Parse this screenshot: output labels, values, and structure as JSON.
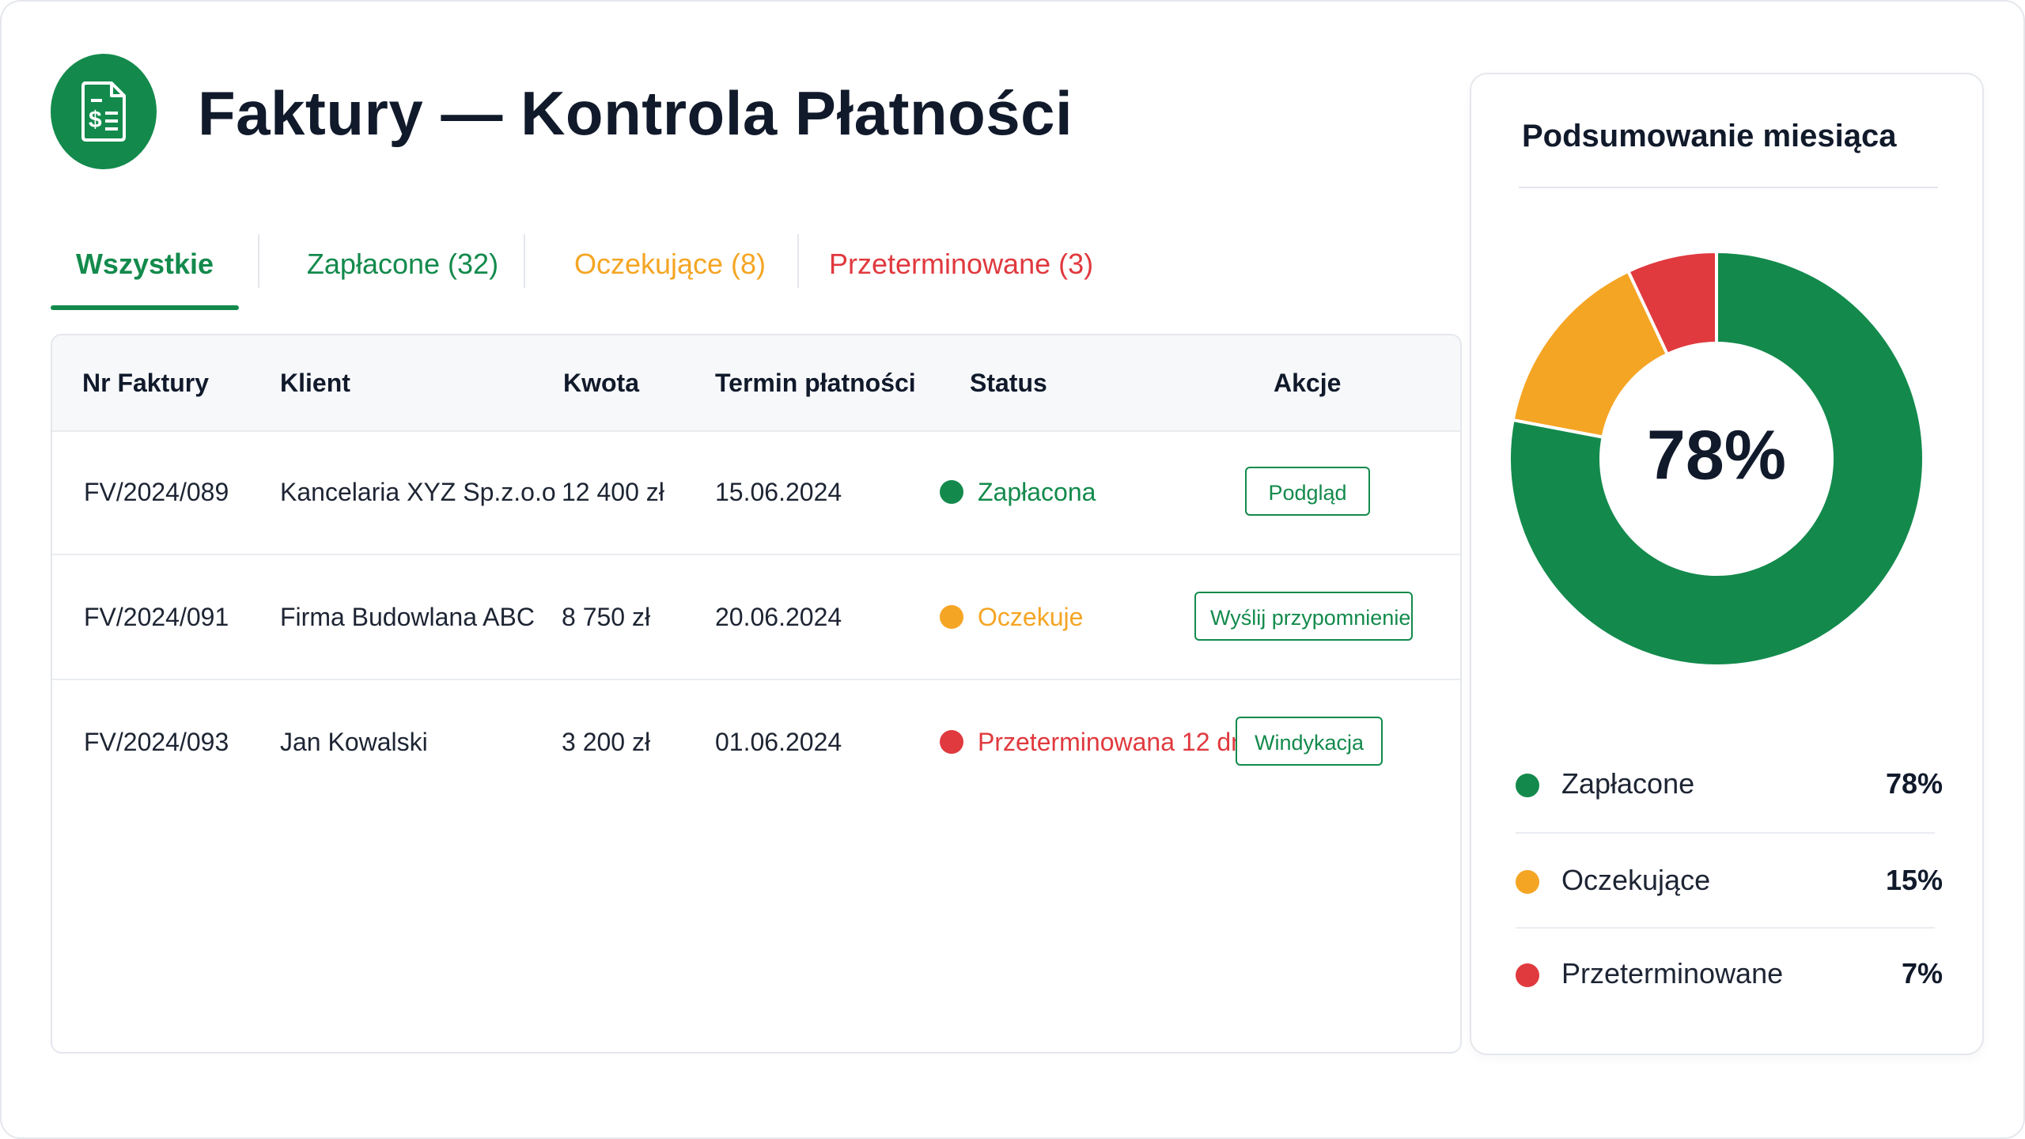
{
  "header": {
    "title": "Faktury — Kontrola Płatności",
    "logo_icon": "invoice-dollar-icon",
    "brand_color": "#138a4c"
  },
  "tabs": [
    {
      "label": "Wszystkie",
      "color": "#138a4c",
      "active": true
    },
    {
      "label": "Zapłacone (32)",
      "color": "#138a4c",
      "active": false
    },
    {
      "label": "Oczekujące (8)",
      "color": "#f5a524",
      "active": false
    },
    {
      "label": "Przeterminowane (3)",
      "color": "#e0393e",
      "active": false
    }
  ],
  "table": {
    "columns": [
      "Nr Faktury",
      "Klient",
      "Kwota",
      "Termin płatności",
      "Status",
      "Akcje"
    ],
    "rows": [
      {
        "number": "FV/2024/089",
        "client": "Kancelaria XYZ Sp.z.o.o",
        "amount": "12 400 zł",
        "due": "15.06.2024",
        "status": "Zapłacona",
        "status_color": "#138a4c",
        "action": "Podgląd"
      },
      {
        "number": "FV/2024/091",
        "client": "Firma Budowlana ABC",
        "amount": "8 750 zł",
        "due": "20.06.2024",
        "status": "Oczekuje",
        "status_color": "#f5a524",
        "action": "Wyślij przypomnienie"
      },
      {
        "number": "FV/2024/093",
        "client": "Jan Kowalski",
        "amount": "3 200 zł",
        "due": "01.06.2024",
        "status": "Przeterminowana 12 dni",
        "status_color": "#e0393e",
        "action": "Windykacja"
      }
    ]
  },
  "summary": {
    "title": "Podsumowanie miesiąca",
    "center_label": "78%",
    "items": [
      {
        "name": "Zapłacone",
        "percent": 78,
        "label": "78%",
        "color": "#138a4c"
      },
      {
        "name": "Oczekujące",
        "percent": 15,
        "label": "15%",
        "color": "#f5a524"
      },
      {
        "name": "Przeterminowane",
        "percent": 7,
        "label": "7%",
        "color": "#e0393e"
      }
    ]
  }
}
